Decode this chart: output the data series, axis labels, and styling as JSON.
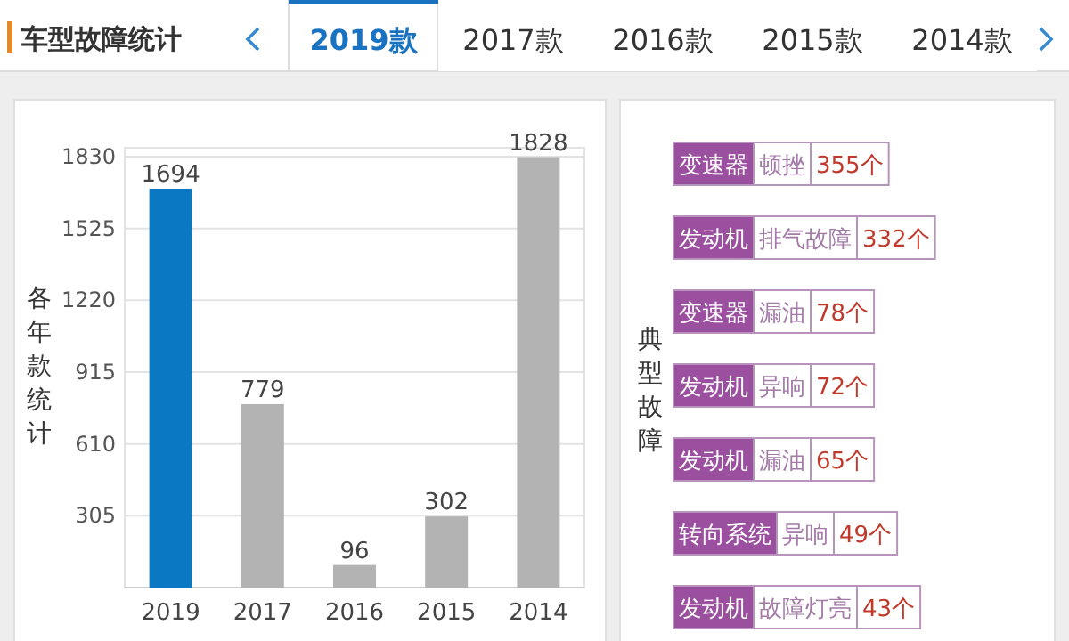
{
  "chart_data": [
    {
      "type": "bar",
      "title": "车型故障统计",
      "annotations": [
        "2019款",
        "2017款",
        "2016款",
        "2015款",
        "2014款"
      ],
      "ylabel": "各年款统计",
      "categories": [
        "2019",
        "2017",
        "2016",
        "2015",
        "2014"
      ],
      "values": [
        1694,
        779,
        96,
        302,
        1828
      ],
      "colors": [
        "#0a78c2",
        "#b3b3b3",
        "#b3b3b3",
        "#b3b3b3",
        "#b3b3b3"
      ],
      "ylim": [
        0,
        1830
      ],
      "yticks": [
        305,
        610,
        915,
        1220,
        1525,
        1830
      ],
      "grid": "y",
      "data_labels": true
    },
    {
      "type": "other",
      "title": "典型故障",
      "annotations": [
        "变速器",
        "顿挫",
        "355个",
        "发动机",
        "排气故障",
        "332个",
        "变速器",
        "漏油",
        "78个",
        "发动机",
        "异响",
        "72个",
        "发动机",
        "漏油",
        "65个",
        "转向系统",
        "异响",
        "49个",
        "发动机",
        "故障灯亮",
        "43个"
      ]
    }
  ]
}
